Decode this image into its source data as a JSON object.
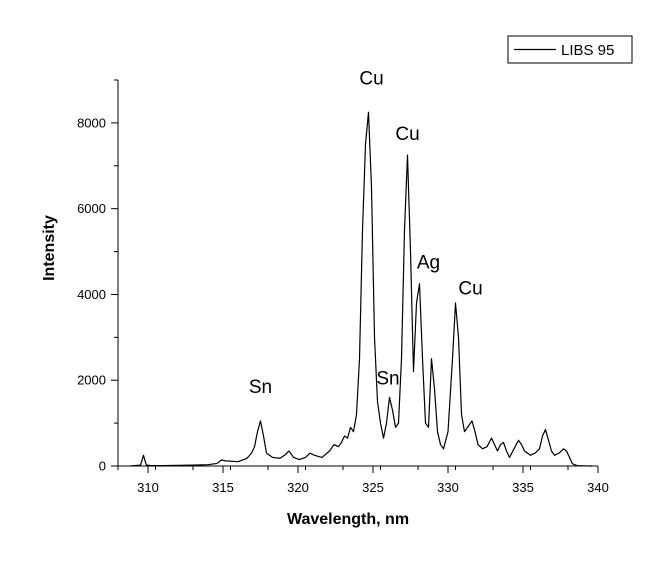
{
  "chart_data": {
    "type": "line",
    "title": "",
    "xlabel": "Wavelength, nm",
    "ylabel": "Intensity",
    "xlim": [
      308,
      340
    ],
    "ylim": [
      0,
      9000
    ],
    "xticks_major": [
      310,
      315,
      320,
      325,
      330,
      335,
      340
    ],
    "yticks_major": [
      0,
      2000,
      4000,
      6000,
      8000
    ],
    "grid": false,
    "legend": {
      "position": "top-right",
      "entries": [
        "LIBS 95"
      ]
    },
    "series": [
      {
        "name": "LIBS 95",
        "x": [
          308.8,
          309.5,
          309.7,
          309.8,
          309.9,
          310.2,
          311,
          312,
          313,
          314,
          314.6,
          314.9,
          315.2,
          316,
          316.6,
          316.9,
          317.1,
          317.3,
          317.5,
          317.7,
          317.9,
          318.3,
          318.8,
          319.1,
          319.4,
          319.7,
          320.1,
          320.5,
          320.8,
          321.1,
          321.6,
          322.1,
          322.4,
          322.7,
          322.9,
          323.1,
          323.3,
          323.5,
          323.7,
          323.9,
          324.1,
          324.3,
          324.5,
          324.7,
          324.9,
          325.1,
          325.3,
          325.5,
          325.7,
          325.9,
          326.1,
          326.3,
          326.5,
          326.7,
          326.9,
          327.1,
          327.3,
          327.5,
          327.7,
          327.9,
          328.1,
          328.3,
          328.5,
          328.7,
          328.9,
          329.1,
          329.3,
          329.5,
          329.7,
          330.0,
          330.3,
          330.5,
          330.7,
          330.9,
          331.1,
          331.3,
          331.6,
          331.8,
          332.0,
          332.3,
          332.6,
          332.9,
          333.1,
          333.3,
          333.5,
          333.7,
          333.9,
          334.1,
          334.4,
          334.7,
          334.9,
          335.1,
          335.3,
          335.5,
          335.8,
          336.1,
          336.3,
          336.5,
          336.7,
          336.9,
          337.1,
          337.4,
          337.7,
          337.9,
          338.1,
          338.3,
          338.6,
          339,
          339.6
        ],
        "values": [
          0,
          20,
          250,
          120,
          20,
          10,
          10,
          15,
          20,
          30,
          60,
          140,
          120,
          100,
          180,
          300,
          450,
          800,
          1050,
          700,
          300,
          200,
          180,
          250,
          350,
          200,
          150,
          200,
          300,
          250,
          200,
          350,
          500,
          450,
          550,
          700,
          650,
          900,
          800,
          1200,
          2500,
          5500,
          7500,
          8250,
          6500,
          3000,
          1500,
          1000,
          650,
          1000,
          1600,
          1300,
          900,
          1000,
          2500,
          5500,
          7250,
          5000,
          2200,
          3800,
          4250,
          2500,
          1000,
          900,
          2500,
          1800,
          800,
          500,
          400,
          800,
          2500,
          3800,
          3000,
          1200,
          800,
          900,
          1050,
          800,
          500,
          400,
          450,
          650,
          500,
          350,
          500,
          550,
          350,
          200,
          400,
          600,
          500,
          350,
          300,
          250,
          300,
          400,
          700,
          850,
          600,
          350,
          250,
          300,
          400,
          350,
          200,
          50,
          10,
          5,
          0
        ],
        "color": "#000000"
      }
    ],
    "annotations": [
      {
        "text": "Sn",
        "x": 317.5,
        "y": 1700
      },
      {
        "text": "Cu",
        "x": 324.9,
        "y": 8900
      },
      {
        "text": "Cu",
        "x": 327.3,
        "y": 7600
      },
      {
        "text": "Sn",
        "x": 326.0,
        "y": 1900
      },
      {
        "text": "Ag",
        "x": 328.7,
        "y": 4600
      },
      {
        "text": "Cu",
        "x": 331.5,
        "y": 4000
      }
    ]
  }
}
